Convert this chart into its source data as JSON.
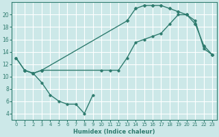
{
  "bg_color": "#cce8e8",
  "grid_color": "#ffffff",
  "line_color": "#2e7b6e",
  "line1_x": [
    0,
    1,
    2,
    3,
    4,
    5,
    6,
    7,
    8,
    9
  ],
  "line1_y": [
    13,
    11,
    10.5,
    9,
    7,
    6,
    5.5,
    5.5,
    4,
    7
  ],
  "line2_x": [
    0,
    1,
    2,
    3,
    10,
    11,
    12,
    13,
    14,
    15,
    16,
    17,
    18,
    19,
    20,
    21,
    22,
    23
  ],
  "line2_y": [
    13,
    11,
    10.5,
    11,
    11,
    11,
    11,
    13,
    15.5,
    16,
    16.5,
    17,
    18.5,
    20,
    20,
    19,
    14.5,
    13.5
  ],
  "line3_x": [
    1,
    2,
    3,
    13,
    14,
    15,
    16,
    17,
    18,
    19,
    20,
    21,
    22,
    23
  ],
  "line3_y": [
    11,
    10.5,
    11,
    19,
    21,
    21.5,
    21.5,
    21.5,
    21,
    20.5,
    20,
    18.5,
    15,
    13.5
  ],
  "xlabel": "Humidex (Indice chaleur)",
  "xlim": [
    -0.5,
    23.5
  ],
  "ylim": [
    3,
    22
  ],
  "yticks": [
    4,
    6,
    8,
    10,
    12,
    14,
    16,
    18,
    20
  ],
  "xticks": [
    0,
    1,
    2,
    3,
    4,
    5,
    6,
    7,
    8,
    9,
    10,
    11,
    12,
    13,
    14,
    15,
    16,
    17,
    18,
    19,
    20,
    21,
    22,
    23
  ],
  "xlabel_fontsize": 6.0,
  "tick_fontsize_x": 5.0,
  "tick_fontsize_y": 5.5
}
